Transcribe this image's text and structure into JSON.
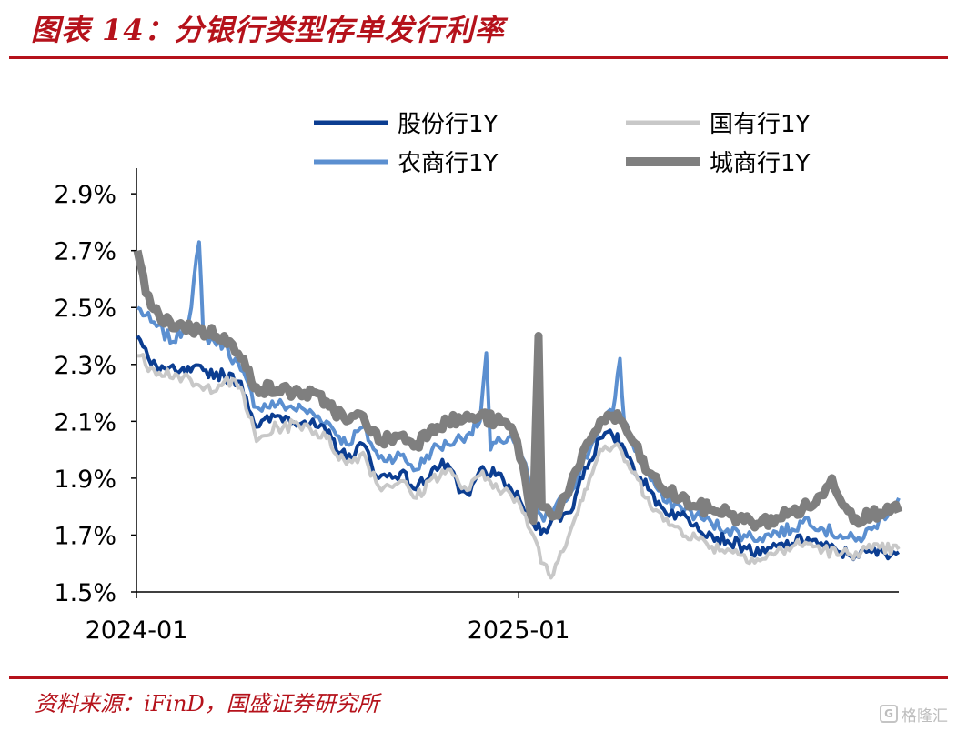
{
  "figure": {
    "title": "图表 14：分银行类型存单发行利率",
    "source": "资料来源：iFinD，国盛证券研究所",
    "watermark": "格隆汇",
    "watermark_logo": "G",
    "accent_color": "#b5121b"
  },
  "chart_data": {
    "type": "line",
    "title": "",
    "xlabel": "",
    "ylabel": "",
    "x_range": [
      "2024-01-01",
      "2025-12-31"
    ],
    "x_ticks": [
      "2024-01",
      "2025-01"
    ],
    "ylim": [
      1.5,
      3.0
    ],
    "y_ticks": [
      "1.5%",
      "1.7%",
      "1.9%",
      "2.1%",
      "2.3%",
      "2.5%",
      "2.7%",
      "2.9%"
    ],
    "grid": false,
    "legend_position": "top",
    "series": [
      {
        "name": "股份行1Y",
        "color": "#0b3d91",
        "width": 4,
        "points": [
          [
            "2024-01-02",
            2.4
          ],
          [
            "2024-01-15",
            2.3
          ],
          [
            "2024-02-10",
            2.27
          ],
          [
            "2024-03-05",
            2.28
          ],
          [
            "2024-03-25",
            2.26
          ],
          [
            "2024-04-10",
            2.24
          ],
          [
            "2024-04-25",
            2.08
          ],
          [
            "2024-05-15",
            2.12
          ],
          [
            "2024-06-10",
            2.1
          ],
          [
            "2024-07-01",
            2.06
          ],
          [
            "2024-07-20",
            1.97
          ],
          [
            "2024-08-05",
            2.02
          ],
          [
            "2024-08-20",
            1.9
          ],
          [
            "2024-09-10",
            1.92
          ],
          [
            "2024-09-25",
            1.86
          ],
          [
            "2024-10-10",
            1.93
          ],
          [
            "2024-10-25",
            1.95
          ],
          [
            "2024-11-05",
            1.85
          ],
          [
            "2024-11-15",
            1.84
          ],
          [
            "2024-11-25",
            1.93
          ],
          [
            "2024-12-10",
            1.91
          ],
          [
            "2024-12-25",
            1.86
          ],
          [
            "2025-01-05",
            1.8
          ],
          [
            "2025-01-15",
            1.74
          ],
          [
            "2025-01-25",
            1.72
          ],
          [
            "2025-02-05",
            1.76
          ],
          [
            "2025-02-20",
            1.78
          ],
          [
            "2025-03-01",
            1.9
          ],
          [
            "2025-03-10",
            1.96
          ],
          [
            "2025-03-20",
            2.04
          ],
          [
            "2025-04-01",
            2.05
          ],
          [
            "2025-04-10",
            2.02
          ],
          [
            "2025-04-20",
            1.95
          ],
          [
            "2025-05-05",
            1.86
          ],
          [
            "2025-05-20",
            1.79
          ],
          [
            "2025-06-05",
            1.77
          ],
          [
            "2025-06-20",
            1.74
          ],
          [
            "2025-07-05",
            1.7
          ],
          [
            "2025-07-20",
            1.68
          ],
          [
            "2025-08-05",
            1.66
          ],
          [
            "2025-08-20",
            1.63
          ],
          [
            "2025-09-05",
            1.66
          ],
          [
            "2025-09-20",
            1.67
          ],
          [
            "2025-10-05",
            1.69
          ],
          [
            "2025-10-20",
            1.66
          ],
          [
            "2025-11-05",
            1.64
          ],
          [
            "2025-11-20",
            1.63
          ],
          [
            "2025-12-05",
            1.64
          ],
          [
            "2025-12-31",
            1.64
          ]
        ]
      },
      {
        "name": "国有行1Y",
        "color": "#c8c8c8",
        "width": 4,
        "points": [
          [
            "2024-01-02",
            2.33
          ],
          [
            "2024-01-15",
            2.29
          ],
          [
            "2024-02-10",
            2.26
          ],
          [
            "2024-03-05",
            2.21
          ],
          [
            "2024-03-25",
            2.24
          ],
          [
            "2024-04-10",
            2.22
          ],
          [
            "2024-04-25",
            2.03
          ],
          [
            "2024-05-15",
            2.08
          ],
          [
            "2024-06-10",
            2.09
          ],
          [
            "2024-07-01",
            2.04
          ],
          [
            "2024-07-20",
            1.95
          ],
          [
            "2024-08-05",
            1.99
          ],
          [
            "2024-08-20",
            1.87
          ],
          [
            "2024-09-10",
            1.89
          ],
          [
            "2024-09-25",
            1.83
          ],
          [
            "2024-10-10",
            1.9
          ],
          [
            "2024-10-25",
            1.93
          ],
          [
            "2024-11-05",
            1.88
          ],
          [
            "2024-11-15",
            1.86
          ],
          [
            "2024-11-25",
            1.91
          ],
          [
            "2024-12-10",
            1.88
          ],
          [
            "2024-12-25",
            1.84
          ],
          [
            "2025-01-05",
            1.78
          ],
          [
            "2025-01-15",
            1.7
          ],
          [
            "2025-01-25",
            1.6
          ],
          [
            "2025-02-01",
            1.55
          ],
          [
            "2025-02-10",
            1.64
          ],
          [
            "2025-02-20",
            1.72
          ],
          [
            "2025-03-01",
            1.82
          ],
          [
            "2025-03-10",
            1.9
          ],
          [
            "2025-03-20",
            2.0
          ],
          [
            "2025-04-01",
            2.01
          ],
          [
            "2025-04-10",
            1.99
          ],
          [
            "2025-04-20",
            1.92
          ],
          [
            "2025-05-05",
            1.83
          ],
          [
            "2025-05-20",
            1.75
          ],
          [
            "2025-06-05",
            1.72
          ],
          [
            "2025-06-20",
            1.69
          ],
          [
            "2025-07-05",
            1.66
          ],
          [
            "2025-07-20",
            1.65
          ],
          [
            "2025-08-05",
            1.63
          ],
          [
            "2025-08-20",
            1.61
          ],
          [
            "2025-09-05",
            1.64
          ],
          [
            "2025-09-20",
            1.66
          ],
          [
            "2025-10-05",
            1.67
          ],
          [
            "2025-10-20",
            1.65
          ],
          [
            "2025-11-05",
            1.63
          ],
          [
            "2025-11-20",
            1.64
          ],
          [
            "2025-12-05",
            1.65
          ],
          [
            "2025-12-31",
            1.65
          ]
        ]
      },
      {
        "name": "农商行1Y",
        "color": "#5b8fd0",
        "width": 4,
        "points": [
          [
            "2024-01-02",
            2.5
          ],
          [
            "2024-01-15",
            2.45
          ],
          [
            "2024-02-05",
            2.38
          ],
          [
            "2024-02-20",
            2.45
          ],
          [
            "2024-03-01",
            2.73
          ],
          [
            "2024-03-05",
            2.4
          ],
          [
            "2024-03-25",
            2.37
          ],
          [
            "2024-04-10",
            2.28
          ],
          [
            "2024-04-25",
            2.15
          ],
          [
            "2024-05-15",
            2.16
          ],
          [
            "2024-06-10",
            2.14
          ],
          [
            "2024-07-01",
            2.1
          ],
          [
            "2024-07-20",
            2.02
          ],
          [
            "2024-08-05",
            2.08
          ],
          [
            "2024-08-20",
            1.97
          ],
          [
            "2024-09-10",
            1.98
          ],
          [
            "2024-09-25",
            1.93
          ],
          [
            "2024-10-10",
            2.0
          ],
          [
            "2024-10-25",
            2.02
          ],
          [
            "2024-11-15",
            2.06
          ],
          [
            "2024-11-25",
            2.1
          ],
          [
            "2024-12-01",
            2.34
          ],
          [
            "2024-12-05",
            2.0
          ],
          [
            "2024-12-15",
            2.03
          ],
          [
            "2024-12-25",
            2.05
          ],
          [
            "2025-01-05",
            1.97
          ],
          [
            "2025-01-15",
            1.82
          ],
          [
            "2025-01-25",
            1.75
          ],
          [
            "2025-02-05",
            1.8
          ],
          [
            "2025-02-20",
            1.85
          ],
          [
            "2025-03-01",
            1.93
          ],
          [
            "2025-03-10",
            2.0
          ],
          [
            "2025-03-20",
            2.09
          ],
          [
            "2025-04-01",
            2.13
          ],
          [
            "2025-04-08",
            2.32
          ],
          [
            "2025-04-12",
            2.1
          ],
          [
            "2025-04-20",
            2.02
          ],
          [
            "2025-05-05",
            1.92
          ],
          [
            "2025-05-20",
            1.82
          ],
          [
            "2025-06-05",
            1.8
          ],
          [
            "2025-06-20",
            1.77
          ],
          [
            "2025-07-05",
            1.74
          ],
          [
            "2025-07-20",
            1.72
          ],
          [
            "2025-08-05",
            1.7
          ],
          [
            "2025-08-20",
            1.69
          ],
          [
            "2025-09-05",
            1.71
          ],
          [
            "2025-09-20",
            1.72
          ],
          [
            "2025-10-05",
            1.76
          ],
          [
            "2025-10-20",
            1.72
          ],
          [
            "2025-11-05",
            1.7
          ],
          [
            "2025-11-20",
            1.68
          ],
          [
            "2025-12-05",
            1.72
          ],
          [
            "2025-12-31",
            1.83
          ]
        ]
      },
      {
        "name": "城商行1Y",
        "color": "#7f7f7f",
        "width": 9,
        "points": [
          [
            "2024-01-02",
            2.7
          ],
          [
            "2024-01-10",
            2.55
          ],
          [
            "2024-01-25",
            2.45
          ],
          [
            "2024-02-10",
            2.44
          ],
          [
            "2024-03-01",
            2.42
          ],
          [
            "2024-03-25",
            2.4
          ],
          [
            "2024-04-10",
            2.32
          ],
          [
            "2024-04-25",
            2.22
          ],
          [
            "2024-05-15",
            2.21
          ],
          [
            "2024-06-10",
            2.2
          ],
          [
            "2024-07-01",
            2.17
          ],
          [
            "2024-07-20",
            2.1
          ],
          [
            "2024-08-05",
            2.12
          ],
          [
            "2024-08-20",
            2.03
          ],
          [
            "2024-09-10",
            2.05
          ],
          [
            "2024-09-25",
            2.02
          ],
          [
            "2024-10-10",
            2.08
          ],
          [
            "2024-10-25",
            2.1
          ],
          [
            "2024-11-15",
            2.11
          ],
          [
            "2024-11-25",
            2.12
          ],
          [
            "2024-12-10",
            2.1
          ],
          [
            "2024-12-25",
            2.08
          ],
          [
            "2025-01-05",
            1.95
          ],
          [
            "2025-01-10",
            1.83
          ],
          [
            "2025-01-15",
            1.75
          ],
          [
            "2025-01-20",
            2.4
          ],
          [
            "2025-01-23",
            1.8
          ],
          [
            "2025-02-05",
            1.77
          ],
          [
            "2025-02-20",
            1.88
          ],
          [
            "2025-03-01",
            1.95
          ],
          [
            "2025-03-10",
            2.03
          ],
          [
            "2025-03-20",
            2.1
          ],
          [
            "2025-04-01",
            2.12
          ],
          [
            "2025-04-10",
            2.1
          ],
          [
            "2025-04-20",
            2.03
          ],
          [
            "2025-05-05",
            1.92
          ],
          [
            "2025-05-20",
            1.86
          ],
          [
            "2025-06-05",
            1.83
          ],
          [
            "2025-06-20",
            1.8
          ],
          [
            "2025-07-05",
            1.79
          ],
          [
            "2025-07-20",
            1.78
          ],
          [
            "2025-08-05",
            1.75
          ],
          [
            "2025-08-20",
            1.74
          ],
          [
            "2025-09-05",
            1.76
          ],
          [
            "2025-09-20",
            1.78
          ],
          [
            "2025-10-05",
            1.8
          ],
          [
            "2025-10-20",
            1.84
          ],
          [
            "2025-10-28",
            1.9
          ],
          [
            "2025-11-10",
            1.8
          ],
          [
            "2025-11-20",
            1.76
          ],
          [
            "2025-12-05",
            1.77
          ],
          [
            "2025-12-20",
            1.8
          ],
          [
            "2025-12-31",
            1.78
          ]
        ]
      }
    ]
  }
}
